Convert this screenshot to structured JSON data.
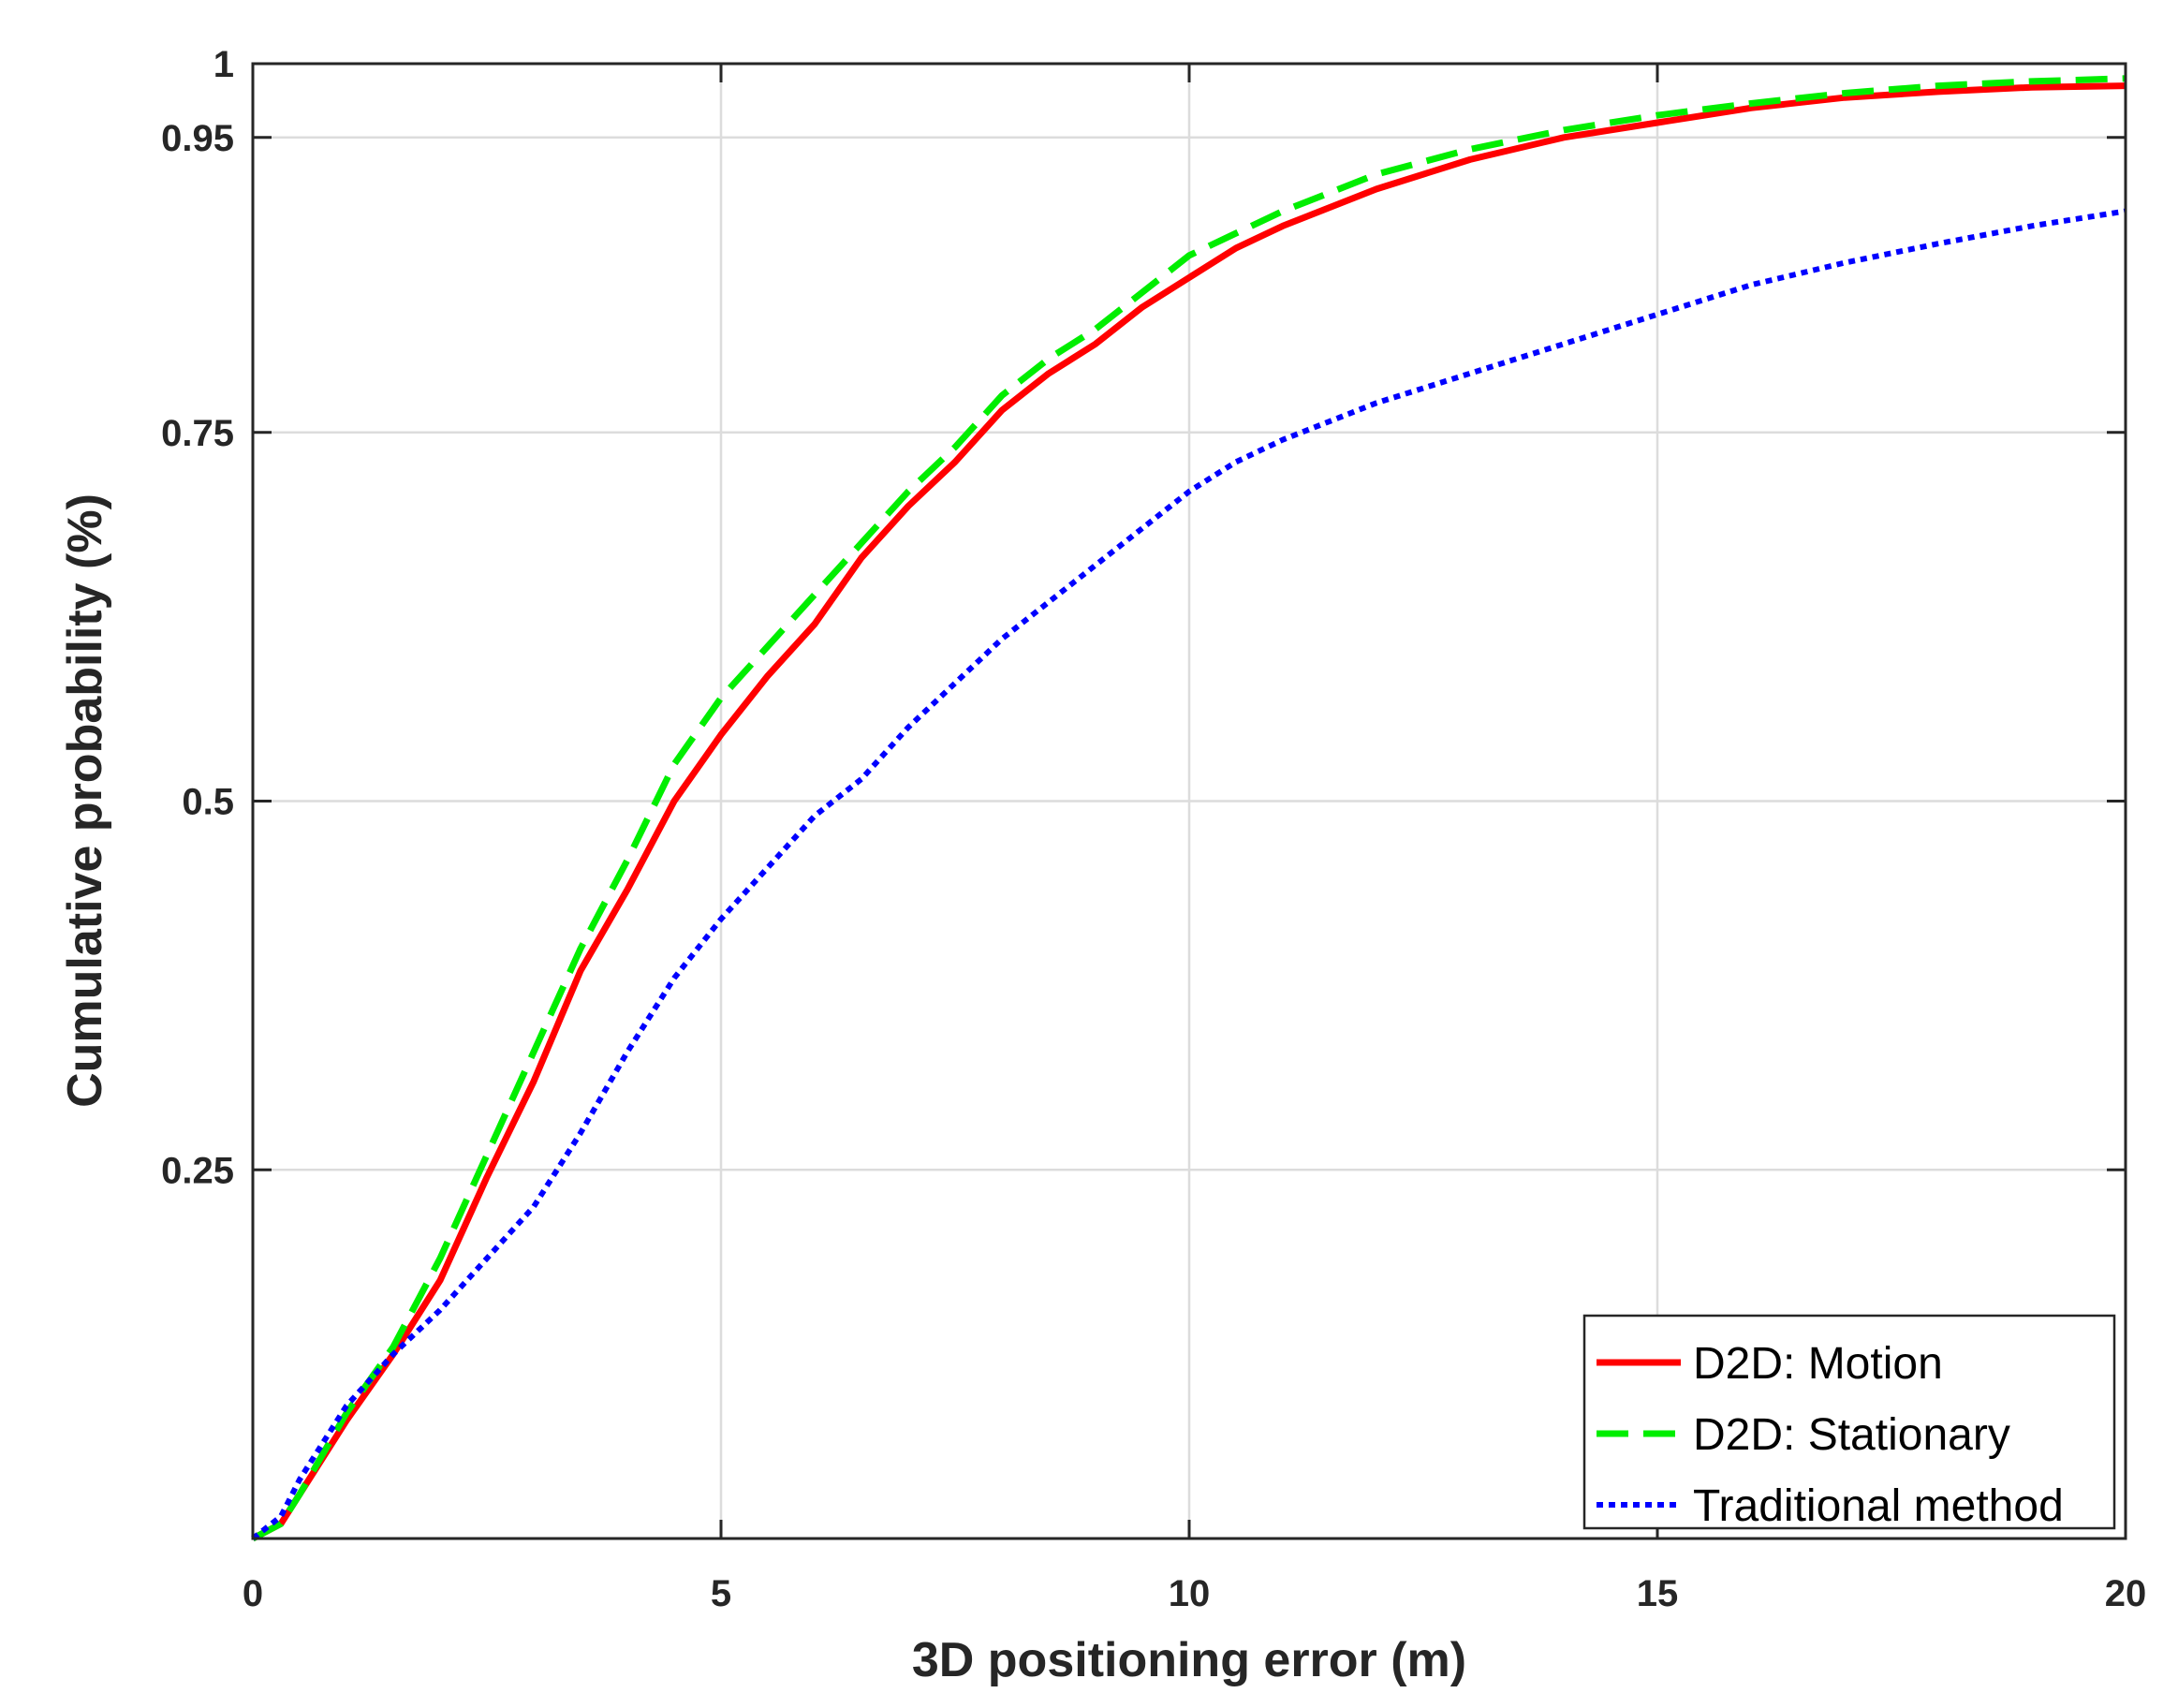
{
  "chart_data": {
    "type": "line",
    "xlabel": "3D positioning error (m)",
    "ylabel": "Cumulative probability (%)",
    "xlim": [
      0,
      20
    ],
    "ylim": [
      0,
      1
    ],
    "x_ticks": [
      0,
      5,
      10,
      15,
      20
    ],
    "y_ticks": [
      0.25,
      0.5,
      0.75,
      0.95,
      1
    ],
    "x_tick_labels": [
      "0",
      "5",
      "10",
      "15",
      "20"
    ],
    "y_tick_labels": [
      "0.25",
      "0.5",
      "0.75",
      "0.95",
      "1"
    ],
    "grid": true,
    "legend_position": "bottom-right",
    "series": [
      {
        "name": "D2D: Motion",
        "color": "#ff0000",
        "style": "solid",
        "x": [
          0,
          0.3,
          0.5,
          1,
          1.5,
          2,
          2.5,
          3,
          3.5,
          4,
          4.5,
          5,
          5.5,
          6,
          6.5,
          7,
          7.5,
          8,
          8.5,
          9,
          9.5,
          10,
          10.5,
          11,
          12,
          13,
          14,
          15,
          16,
          17,
          18,
          19,
          20
        ],
        "y": [
          0,
          0.01,
          0.03,
          0.08,
          0.125,
          0.175,
          0.245,
          0.31,
          0.385,
          0.44,
          0.5,
          0.545,
          0.585,
          0.62,
          0.665,
          0.7,
          0.73,
          0.765,
          0.79,
          0.81,
          0.835,
          0.855,
          0.875,
          0.89,
          0.915,
          0.935,
          0.95,
          0.96,
          0.97,
          0.977,
          0.981,
          0.984,
          0.985
        ]
      },
      {
        "name": "D2D: Stationary",
        "color": "#00ee00",
        "style": "dashed",
        "x": [
          0,
          0.3,
          0.5,
          1,
          1.5,
          2,
          2.5,
          3,
          3.5,
          4,
          4.5,
          5,
          5.5,
          6,
          6.5,
          7,
          7.5,
          8,
          8.5,
          9,
          9.5,
          10,
          10.5,
          11,
          12,
          13,
          14,
          15,
          16,
          17,
          18,
          19,
          20
        ],
        "y": [
          0,
          0.01,
          0.03,
          0.085,
          0.13,
          0.19,
          0.26,
          0.33,
          0.4,
          0.46,
          0.525,
          0.57,
          0.605,
          0.64,
          0.675,
          0.71,
          0.74,
          0.775,
          0.8,
          0.82,
          0.845,
          0.87,
          0.885,
          0.9,
          0.925,
          0.942,
          0.955,
          0.965,
          0.973,
          0.98,
          0.985,
          0.988,
          0.99
        ]
      },
      {
        "name": "Traditional method",
        "color": "#0000ff",
        "style": "dotted",
        "x": [
          0,
          0.3,
          0.5,
          1,
          1.5,
          2,
          2.5,
          3,
          3.5,
          4,
          4.5,
          5,
          5.5,
          6,
          6.5,
          7,
          7.5,
          8,
          8.5,
          9,
          9.5,
          10,
          10.5,
          11,
          12,
          13,
          14,
          15,
          16,
          17,
          18,
          19,
          20
        ],
        "y": [
          0,
          0.015,
          0.04,
          0.09,
          0.125,
          0.155,
          0.19,
          0.225,
          0.275,
          0.33,
          0.38,
          0.42,
          0.455,
          0.49,
          0.515,
          0.55,
          0.58,
          0.61,
          0.635,
          0.66,
          0.685,
          0.71,
          0.73,
          0.745,
          0.77,
          0.79,
          0.81,
          0.83,
          0.85,
          0.865,
          0.878,
          0.89,
          0.9
        ]
      }
    ]
  }
}
